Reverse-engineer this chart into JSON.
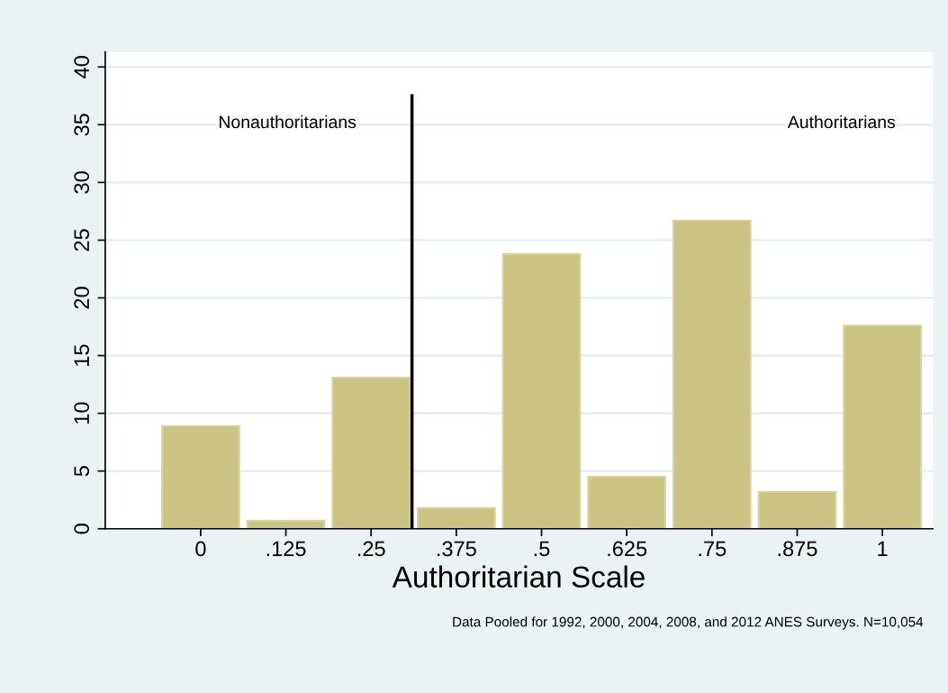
{
  "chart_data": {
    "type": "bar",
    "xlabel": "Authoritarian Scale",
    "x": [
      0,
      0.125,
      0.25,
      0.375,
      0.5,
      0.625,
      0.75,
      0.875,
      1
    ],
    "series": [
      {
        "color": "#cbc382",
        "values": [
          8.9,
          0.7,
          13.1,
          1.8,
          23.8,
          4.5,
          26.7,
          3.2,
          17.6
        ]
      },
      {
        "type": "line",
        "color": "#000000",
        "x": [
          0.31,
          0.31
        ],
        "values": [
          0,
          37.5
        ]
      }
    ],
    "xlim": [
      -0.14,
      1.074
    ],
    "xticks": [
      0,
      {
        "value": 0.125,
        "label": ".125"
      },
      {
        "value": 0.25,
        "label": ".25"
      },
      {
        "value": 0.375,
        "label": ".375"
      },
      {
        "value": 0.5,
        "label": ".5"
      },
      {
        "value": 0.625,
        "label": ".625"
      },
      {
        "value": 0.75,
        "label": ".75"
      },
      {
        "value": 0.875,
        "label": ".875"
      },
      1
    ],
    "ylim": [
      0,
      41.3
    ],
    "yticks": [
      0,
      5,
      10,
      15,
      20,
      25,
      30,
      35,
      40
    ],
    "grid": "y",
    "annotations": [
      "Nonauthoritarians",
      "Authoritarians",
      "Data Pooled for 1992, 2000, 2004, 2008, and 2012 ANES Surveys. N=10,054"
    ]
  }
}
